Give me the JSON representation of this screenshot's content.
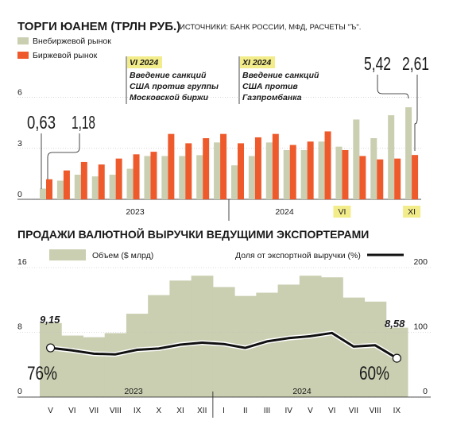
{
  "colors": {
    "otc": "#c9cfb0",
    "exchange": "#ee5a2b",
    "area": "#c9cfb0",
    "line": "#111111",
    "highlight": "#f3ec8a",
    "text": "#1a1a1a"
  },
  "chart_data": [
    {
      "type": "bar",
      "title": "ТОРГИ ЮАНЕМ (ТРЛН РУБ.)",
      "source": "ИСТОЧНИКИ: БАНК РОССИИ, МФД, РАСЧЕТЫ \"Ъ\".",
      "ylim": [
        0,
        7.2
      ],
      "yticks": [
        "0",
        "3",
        "6"
      ],
      "year_labels": [
        "2023",
        "2024"
      ],
      "month_marks": [
        "VI",
        "XI"
      ],
      "series": [
        {
          "name": "Внебиржевой рынок",
          "values": [
            0.63,
            1.1,
            1.45,
            1.35,
            1.45,
            1.8,
            2.55,
            2.55,
            2.55,
            2.6,
            3.35,
            2.0,
            2.55,
            3.35,
            2.9,
            2.9,
            3.4,
            3.1,
            4.7,
            3.6,
            4.95,
            5.42
          ]
        },
        {
          "name": "Биржевой рынок",
          "values": [
            1.18,
            1.7,
            2.2,
            2.05,
            2.4,
            2.65,
            2.8,
            3.85,
            3.3,
            3.6,
            3.85,
            3.3,
            3.65,
            3.85,
            3.2,
            3.4,
            4.0,
            2.9,
            2.55,
            2.35,
            2.4,
            2.61
          ]
        }
      ],
      "callouts": {
        "first_otc": "0,63",
        "first_exchange": "1,18",
        "last_otc": "5,42",
        "last_exchange": "2,61"
      },
      "annotations": [
        {
          "month": "VI 2024",
          "lines": [
            "Введение санкций",
            "США против группы",
            "Московской биржи"
          ]
        },
        {
          "month": "XI 2024",
          "lines": [
            "Введение санкций",
            "США против",
            "Газпромбанка"
          ]
        }
      ]
    },
    {
      "type": "area",
      "title": "ПРОДАЖИ ВАЛЮТНОЙ ВЫРУЧКИ ВЕДУЩИМИ ЭКСПОРТЕРАМИ",
      "categories": [
        "V",
        "VI",
        "VII",
        "VIII",
        "IX",
        "X",
        "XI",
        "XII",
        "I",
        "II",
        "III",
        "IV",
        "V",
        "VI",
        "VII",
        "VIII",
        "IX"
      ],
      "year_labels": [
        "2023",
        "2024"
      ],
      "ylim_left": [
        0,
        16
      ],
      "yticks_left": [
        "0",
        "8",
        "16"
      ],
      "ylim_right": [
        0,
        200
      ],
      "yticks_right": [
        "0",
        "100",
        "200"
      ],
      "series": [
        {
          "name": "Объем ($ млрд)",
          "axis": "left",
          "values": [
            9.15,
            7.6,
            7.4,
            7.9,
            10.3,
            12.6,
            14.4,
            15.0,
            13.6,
            12.5,
            12.9,
            13.9,
            15.0,
            14.8,
            12.3,
            11.8,
            8.58
          ]
        },
        {
          "name": "Доля от экспортной выручки (%)",
          "axis": "right",
          "values": [
            76,
            72,
            67,
            66,
            73,
            75,
            81,
            84,
            82,
            76,
            86,
            91,
            94,
            99,
            78,
            80,
            60
          ]
        }
      ],
      "callouts": {
        "first_volume": "9,15",
        "last_volume": "8,58",
        "first_share": "76%",
        "last_share": "60%"
      }
    }
  ]
}
